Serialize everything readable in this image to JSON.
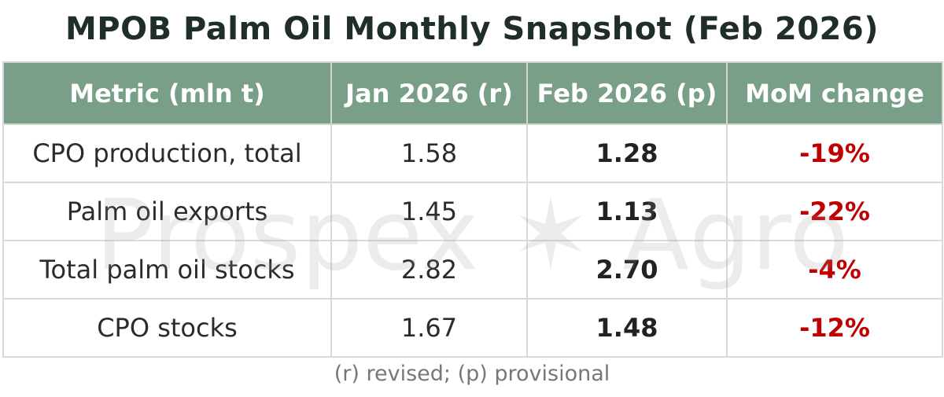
{
  "title": "MPOB Palm Oil Monthly Snapshot (Feb 2026)",
  "watermark": "Prospex ✶ Agro",
  "table": {
    "header": [
      "Metric (mln t)",
      "Jan 2026 (r)",
      "Feb 2026 (p)",
      "MoM change"
    ],
    "rows": [
      [
        "CPO production, total",
        "1.58",
        "1.28",
        "-19%"
      ],
      [
        "Palm oil exports",
        "1.45",
        "1.13",
        "-22%"
      ],
      [
        "Total palm oil stocks",
        "2.82",
        "2.70",
        "-4%"
      ],
      [
        "CPO stocks",
        "1.67",
        "1.48",
        "-12%"
      ]
    ]
  },
  "note": "(r) revised; (p) provisional"
}
